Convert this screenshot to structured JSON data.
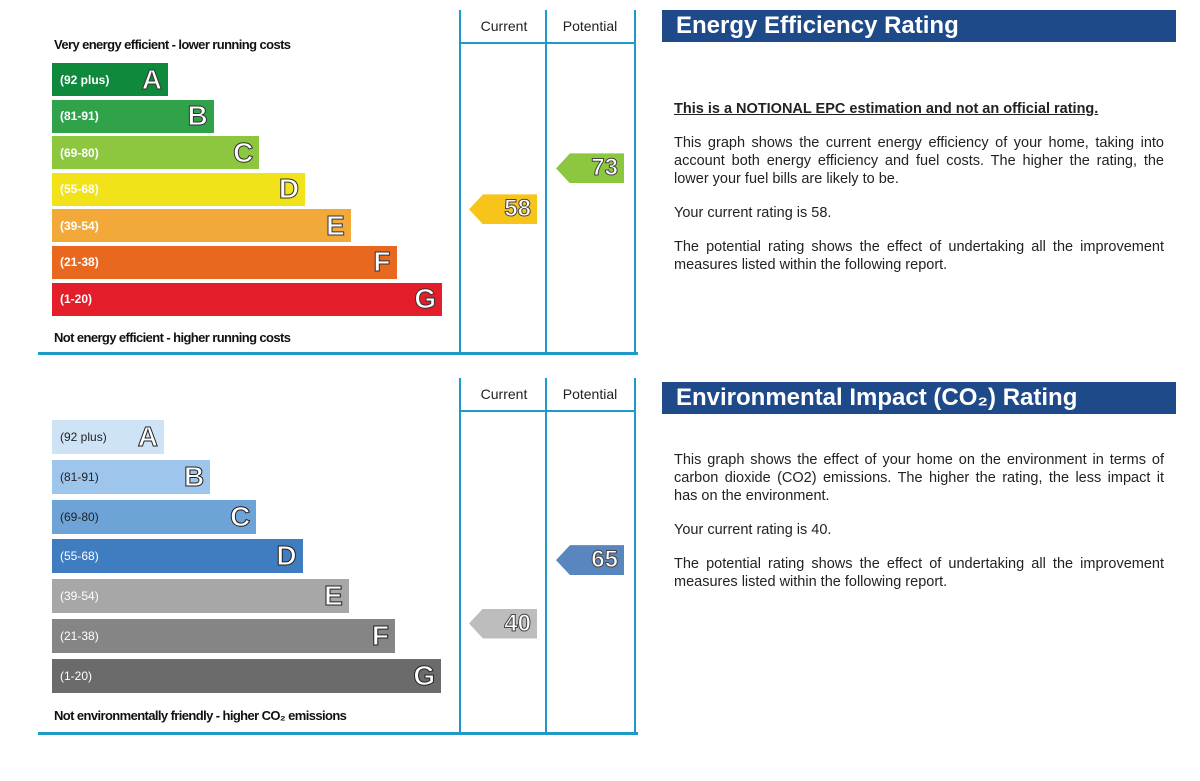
{
  "energy": {
    "title": "Energy Efficiency Rating",
    "top_label": "Very energy efficient - lower running costs",
    "bottom_label": "Not energy efficient - higher running costs",
    "col_current": "Current",
    "col_potential": "Potential",
    "notional": "This is a NOTIONAL EPC estimation and not an official rating.",
    "para1": "This graph shows the current energy efficiency of your home, taking into account both energy efficiency and fuel costs. The higher the rating, the lower your fuel bills are likely to be.",
    "para2": "Your current rating is 58.",
    "para3": "The potential rating shows the effect of undertaking all the improvement measures listed within the following report."
  },
  "environment": {
    "title": "Environmental Impact (CO₂) Rating",
    "bottom_label": "Not environmentally friendly - higher CO₂ emissions",
    "col_current": "Current",
    "col_potential": "Potential",
    "para1": "This graph shows the effect of your home on the environment in terms of carbon dioxide (CO2) emissions. The higher the rating, the less impact it has on the environment.",
    "para2": "Your current rating is 40.",
    "para3": "The potential rating shows the effect of undertaking all the improvement measures listed within the following report."
  },
  "chart_data": [
    {
      "type": "bar",
      "title": "Energy Efficiency Rating",
      "categories": [
        "A",
        "B",
        "C",
        "D",
        "E",
        "F",
        "G"
      ],
      "ranges": [
        "(92 plus)",
        "(81-91)",
        "(69-80)",
        "(55-68)",
        "(39-54)",
        "(21-38)",
        "(1-20)"
      ],
      "colors": [
        "#0f8a3c",
        "#2fa24a",
        "#8dc63f",
        "#f1e21a",
        "#f3a93a",
        "#e8681f",
        "#e31d2a"
      ],
      "series": [
        {
          "name": "Current",
          "value": 58,
          "band": "D",
          "color": "#f7c41c"
        },
        {
          "name": "Potential",
          "value": 73,
          "band": "C",
          "color": "#8dc63f"
        }
      ]
    },
    {
      "type": "bar",
      "title": "Environmental Impact (CO₂) Rating",
      "categories": [
        "A",
        "B",
        "C",
        "D",
        "E",
        "F",
        "G"
      ],
      "ranges": [
        "(92 plus)",
        "(81-91)",
        "(69-80)",
        "(55-68)",
        "(39-54)",
        "(21-38)",
        "(1-20)"
      ],
      "colors": [
        "#cfe3f6",
        "#9ec5ec",
        "#6ea3d8",
        "#3f7cc0",
        "#a7a7a7",
        "#858585",
        "#6b6b6b"
      ],
      "series": [
        {
          "name": "Current",
          "value": 40,
          "band": "E",
          "color": "#bdbdbd"
        },
        {
          "name": "Potential",
          "value": 65,
          "band": "D",
          "color": "#5a86bf"
        }
      ]
    }
  ]
}
